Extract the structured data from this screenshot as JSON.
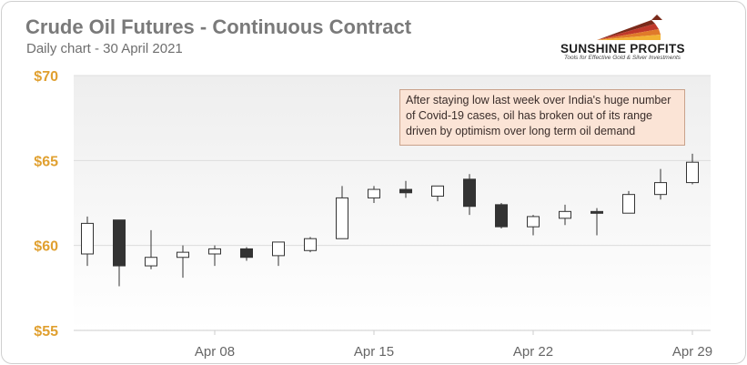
{
  "header": {
    "title": "Crude Oil Futures - Continuous Contract",
    "subtitle": "Daily chart - 30 April 2021"
  },
  "logo": {
    "name": "SUNSHINE PROFITS",
    "tagline": "Tools for Effective Gold & Silver Investments"
  },
  "annotation": "After staying low last week over India's huge number of Covid-19 cases, oil has broken out of its range driven by optimism over long term oil demand",
  "colors": {
    "y_tick_labels": "#e0a030",
    "x_tick_labels": "#666666",
    "up_candle": "#ffffff",
    "down_candle": "#333333",
    "annotation_bg": "#fbe4d6"
  },
  "chart_data": {
    "type": "candlestick",
    "title": "Crude Oil Futures - Continuous Contract",
    "subtitle": "Daily chart - 30 April 2021",
    "ylim": [
      55,
      70
    ],
    "y_ticks": [
      55,
      60,
      65,
      70
    ],
    "y_tick_labels": [
      "$55",
      "$60",
      "$65",
      "$70"
    ],
    "x_tick_labels": [
      "Apr 08",
      "Apr 15",
      "Apr 22",
      "Apr 29"
    ],
    "grid": true,
    "candles": [
      {
        "open": 59.5,
        "high": 61.7,
        "low": 58.8,
        "close": 61.3
      },
      {
        "open": 61.5,
        "high": 61.5,
        "low": 57.6,
        "close": 58.8
      },
      {
        "open": 58.8,
        "high": 60.9,
        "low": 58.6,
        "close": 59.3
      },
      {
        "open": 59.3,
        "high": 60.0,
        "low": 58.1,
        "close": 59.6
      },
      {
        "open": 59.5,
        "high": 60.0,
        "low": 58.8,
        "close": 59.8
      },
      {
        "open": 59.8,
        "high": 59.9,
        "low": 59.1,
        "close": 59.3
      },
      {
        "open": 59.4,
        "high": 60.2,
        "low": 58.8,
        "close": 60.2
      },
      {
        "open": 59.7,
        "high": 60.5,
        "low": 59.6,
        "close": 60.4
      },
      {
        "open": 60.4,
        "high": 63.5,
        "low": 60.4,
        "close": 62.8
      },
      {
        "open": 62.8,
        "high": 63.5,
        "low": 62.5,
        "close": 63.3
      },
      {
        "open": 63.3,
        "high": 63.8,
        "low": 62.8,
        "close": 63.1
      },
      {
        "open": 62.9,
        "high": 63.5,
        "low": 62.6,
        "close": 63.5
      },
      {
        "open": 63.9,
        "high": 64.2,
        "low": 61.8,
        "close": 62.3
      },
      {
        "open": 62.4,
        "high": 62.5,
        "low": 61.0,
        "close": 61.1
      },
      {
        "open": 61.1,
        "high": 61.8,
        "low": 60.6,
        "close": 61.7
      },
      {
        "open": 61.6,
        "high": 62.4,
        "low": 61.2,
        "close": 62.0
      },
      {
        "open": 62.0,
        "high": 62.2,
        "low": 60.6,
        "close": 61.9
      },
      {
        "open": 61.9,
        "high": 63.2,
        "low": 61.9,
        "close": 63.0
      },
      {
        "open": 63.0,
        "high": 64.5,
        "low": 62.7,
        "close": 63.7
      },
      {
        "open": 63.7,
        "high": 65.4,
        "low": 63.6,
        "close": 64.9
      }
    ]
  }
}
